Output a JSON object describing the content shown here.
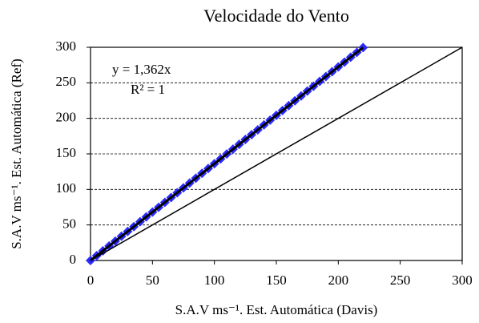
{
  "chart_data": {
    "type": "scatter",
    "title": "Velocidade do Vento",
    "xlabel": "S.A.V ms⁻¹. Est. Automática (Davis)",
    "ylabel": "S.A.V ms⁻¹. Est. Automática (Ref)",
    "annotations": [
      "y = 1,362x",
      "R² = 1"
    ],
    "series": [
      {
        "color": "#2a2aff",
        "x": [
          0,
          5,
          10,
          15,
          20,
          25,
          30,
          35,
          40,
          45,
          50,
          55,
          60,
          65,
          70,
          75,
          80,
          85,
          90,
          95,
          100,
          105,
          110,
          115,
          120,
          125,
          130,
          135,
          140,
          145,
          150,
          155,
          160,
          165,
          170,
          175,
          180,
          185,
          190,
          195,
          200,
          205,
          210,
          215,
          220
        ],
        "values": [
          0,
          6.8,
          13.6,
          20.4,
          27.2,
          34.1,
          40.9,
          47.7,
          54.5,
          61.3,
          68.1,
          74.9,
          81.7,
          88.5,
          95.3,
          102.2,
          109.0,
          115.8,
          122.6,
          129.4,
          136.2,
          143.0,
          149.8,
          156.6,
          163.4,
          170.3,
          177.1,
          183.9,
          190.7,
          197.5,
          204.3,
          211.1,
          217.9,
          224.7,
          231.5,
          238.4,
          245.2,
          252.0,
          258.8,
          265.6,
          272.4,
          279.2,
          286.0,
          292.8,
          299.6
        ]
      }
    ],
    "lines": [
      {
        "color": "#000000",
        "x": [
          0,
          220
        ],
        "y": [
          0,
          299.6
        ],
        "width": 3
      },
      {
        "color": "#000000",
        "x": [
          0,
          300
        ],
        "y": [
          0,
          300
        ],
        "width": 1.5
      }
    ],
    "xlim": [
      0,
      300
    ],
    "xticks": [
      0,
      50,
      100,
      150,
      200,
      250,
      300
    ],
    "ylim": [
      0,
      300
    ],
    "yticks": [
      0,
      50,
      100,
      150,
      200,
      250,
      300
    ],
    "grid": true
  }
}
